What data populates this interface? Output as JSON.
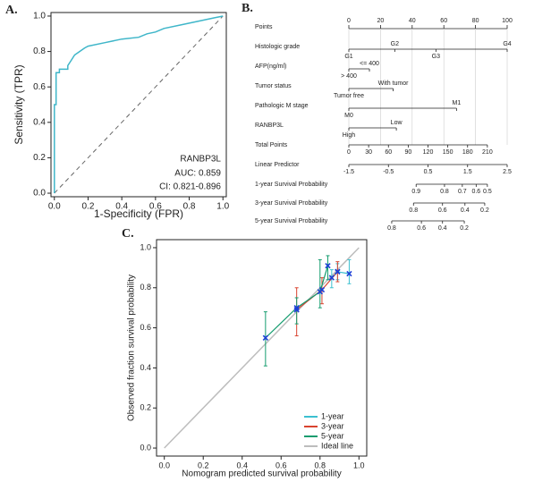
{
  "chart_data": [
    {
      "type": "roc",
      "panel_label": "A.",
      "x_label": "1-Specificity (FPR)",
      "y_label": "Sensitivity (TPR)",
      "xlim": [
        -0.02,
        1.02
      ],
      "ylim": [
        -0.02,
        1.02
      ],
      "xticks": [
        {
          "value": 0,
          "label": "0.0"
        },
        0.2,
        0.4,
        0.6,
        0.8,
        {
          "value": 1,
          "label": "1.0"
        }
      ],
      "yticks": [
        {
          "value": 0,
          "label": "0.0"
        },
        0.2,
        0.4,
        0.6,
        0.8,
        {
          "value": 1,
          "label": "1.0"
        }
      ],
      "x": [
        0,
        0,
        0.01,
        0.01,
        0.03,
        0.03,
        0.08,
        0.08,
        0.1,
        0.12,
        0.15,
        0.18,
        0.2,
        0.3,
        0.4,
        0.5,
        0.55,
        0.6,
        0.65,
        0.75,
        0.85,
        0.95,
        1
      ],
      "series": [
        {
          "name": "RANBP3L",
          "color": "#3fb6c9",
          "values": [
            0,
            0.5,
            0.5,
            0.68,
            0.68,
            0.7,
            0.7,
            0.72,
            0.75,
            0.78,
            0.8,
            0.82,
            0.83,
            0.85,
            0.87,
            0.88,
            0.9,
            0.91,
            0.93,
            0.95,
            0.97,
            0.99,
            1
          ]
        }
      ],
      "annotations": [
        "AUC: 0.859",
        "CI: 0.821-0.896"
      ]
    },
    {
      "type": "nomogram",
      "panel_label": "B.",
      "points_axis": {
        "name": "Points",
        "lim": [
          0,
          100
        ],
        "ticks": [
          0,
          20,
          40,
          60,
          80,
          100
        ]
      },
      "variables": [
        {
          "name": "Histologic grade",
          "levels": [
            "G1",
            "G2",
            "G3",
            "G4"
          ],
          "points": [
            0,
            29,
            55,
            100
          ]
        },
        {
          "name": "AFP(ng/ml)",
          "levels": [
            "> 400",
            "<= 400"
          ],
          "points": [
            0,
            13
          ]
        },
        {
          "name": "Tumor status",
          "levels": [
            "Tumor free",
            "With tumor"
          ],
          "points": [
            0,
            28
          ]
        },
        {
          "name": "Pathologic M stage",
          "levels": [
            "M0",
            "M1"
          ],
          "points": [
            0,
            68
          ]
        },
        {
          "name": "RANBP3L",
          "levels": [
            "High",
            "Low"
          ],
          "points": [
            0,
            30
          ]
        }
      ],
      "total_points_axis": {
        "name": "Total Points",
        "lim": [
          0,
          240
        ],
        "ticks": [
          0,
          30,
          60,
          90,
          120,
          150,
          180,
          210
        ]
      },
      "linear_predictor": {
        "name": "Linear Predictor",
        "lim": [
          -1.5,
          2.5
        ],
        "ticks": [
          -1.5,
          -0.5,
          0.5,
          1.5,
          2.5
        ]
      },
      "survival_axes": [
        {
          "name": "1-year Survival Probability",
          "ticks": [
            0.9,
            0.8,
            0.7,
            0.6,
            0.5
          ],
          "total_points": [
            102,
            145,
            172,
            193,
            210
          ]
        },
        {
          "name": "3-year Survival Probability",
          "ticks": [
            0.8,
            0.6,
            0.4,
            0.2
          ],
          "total_points": [
            98,
            142,
            176,
            206
          ]
        },
        {
          "name": "5-year Survival Probability",
          "ticks": [
            0.8,
            0.6,
            0.4,
            0.2
          ],
          "total_points": [
            65,
            110,
            142,
            175
          ]
        }
      ]
    },
    {
      "type": "calibration",
      "panel_label": "C.",
      "x_label": "Nomogram predicted survival probability",
      "y_label": "Observed fraction survival probability",
      "xlim": [
        -0.04,
        1.04
      ],
      "ylim": [
        -0.04,
        1.04
      ],
      "xticks": [
        {
          "value": 0,
          "label": "0.0"
        },
        0.2,
        0.4,
        0.6,
        0.8,
        {
          "value": 1,
          "label": "1.0"
        }
      ],
      "yticks": [
        {
          "value": 0,
          "label": "0.0"
        },
        0.2,
        0.4,
        0.6,
        0.8,
        {
          "value": 1,
          "label": "1.0"
        }
      ],
      "marker_color": "#1c3fd6",
      "series": [
        {
          "name": "1-year",
          "color": "#3cc0d0",
          "x": [
            0.86,
            0.89,
            0.95
          ],
          "values": [
            0.85,
            0.88,
            0.87
          ],
          "lower": [
            0.8,
            0.84,
            0.82
          ],
          "upper": [
            0.89,
            0.92,
            0.94
          ]
        },
        {
          "name": "3-year",
          "color": "#d9432f",
          "x": [
            0.68,
            0.81,
            0.89
          ],
          "values": [
            0.69,
            0.79,
            0.88
          ],
          "lower": [
            0.56,
            0.72,
            0.83
          ],
          "upper": [
            0.8,
            0.85,
            0.93
          ]
        },
        {
          "name": "5-year",
          "color": "#149c6e",
          "x": [
            0.52,
            0.68,
            0.8,
            0.84
          ],
          "values": [
            0.55,
            0.7,
            0.78,
            0.91
          ],
          "lower": [
            0.41,
            0.62,
            0.7,
            0.84
          ],
          "upper": [
            0.68,
            0.75,
            0.94,
            0.96
          ]
        }
      ],
      "ideal_line": {
        "name": "Ideal line",
        "color": "#bdbdbd"
      }
    }
  ]
}
